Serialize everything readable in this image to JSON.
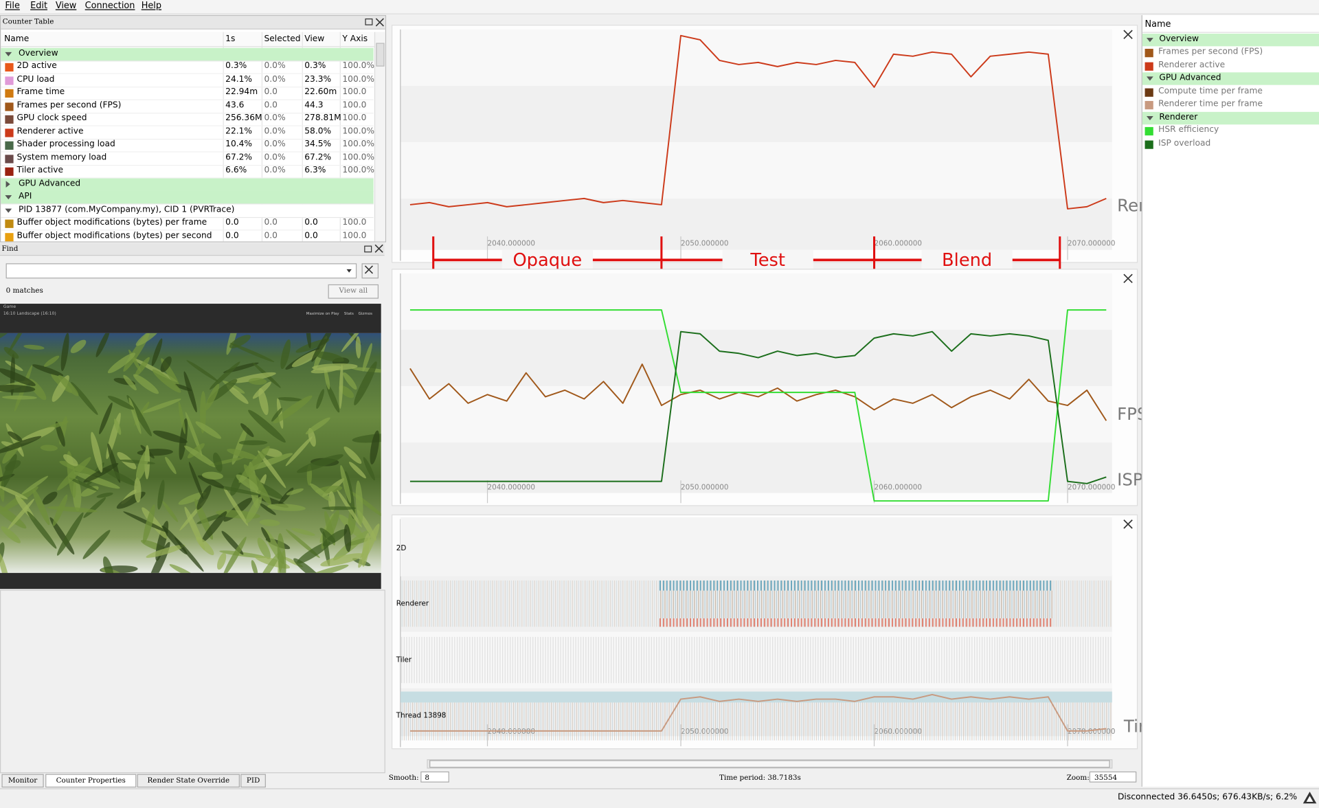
{
  "menu": [
    "File",
    "Edit",
    "View",
    "Connection",
    "Help"
  ],
  "counter_table": {
    "title": "Counter Table",
    "columns": [
      "Name",
      "1s",
      "Selected",
      "View",
      "Y Axis"
    ],
    "rows": [
      {
        "group": "Overview",
        "expanded": true
      },
      {
        "name": "2D active",
        "color": "#e8581a",
        "cells": [
          "0.3%",
          "0.0%",
          "0.3%",
          "100.0%"
        ]
      },
      {
        "name": "CPU load",
        "color": "#e09ad8",
        "cells": [
          "24.1%",
          "0.0%",
          "23.3%",
          "100.0%"
        ]
      },
      {
        "name": "Frame time",
        "color": "#d07a10",
        "cells": [
          "22.94m",
          "0.0",
          "22.60m",
          "100.0"
        ]
      },
      {
        "name": "Frames per second (FPS)",
        "color": "#a0581a",
        "cells": [
          "43.6",
          "0.0",
          "44.3",
          "100.0"
        ]
      },
      {
        "name": "GPU clock speed",
        "color": "#7a4a3a",
        "cells": [
          "256.36M",
          "0.0%",
          "278.81M",
          "100.0"
        ]
      },
      {
        "name": "Renderer active",
        "color": "#cc3a1a",
        "cells": [
          "22.1%",
          "0.0%",
          "58.0%",
          "100.0%"
        ]
      },
      {
        "name": "Shader processing load",
        "color": "#4a6a4a",
        "cells": [
          "10.4%",
          "0.0%",
          "34.5%",
          "100.0%"
        ]
      },
      {
        "name": "System memory load",
        "color": "#6a4a4a",
        "cells": [
          "67.2%",
          "0.0%",
          "67.2%",
          "100.0%"
        ]
      },
      {
        "name": "Tiler active",
        "color": "#9a2010",
        "cells": [
          "6.6%",
          "0.0%",
          "6.3%",
          "100.0%"
        ]
      },
      {
        "group": "GPU Advanced",
        "expanded": false
      },
      {
        "group": "API",
        "expanded": true
      },
      {
        "subgroup": "PID 13877 (com.MyCompany.my), CID 1 (PVRTrace)",
        "expanded": true
      },
      {
        "name": "Buffer object modifications (bytes) per frame",
        "color": "#c08a10",
        "cells": [
          "0.0",
          "0.0",
          "0.0",
          "100.0"
        ]
      },
      {
        "name": "Buffer object modifications (bytes) per second",
        "color": "#e8a010",
        "cells": [
          "0.0",
          "0.0",
          "0.0",
          "100.0"
        ]
      }
    ]
  },
  "find": {
    "title": "Find",
    "matches": "0 matches",
    "button": "View all"
  },
  "game_view": {
    "tab": "Game",
    "aspect": "16:10 Landscape (16:10)",
    "options": [
      "Maximize on Play",
      "Stats",
      "Gizmos"
    ]
  },
  "bottom_tabs": [
    "Monitor",
    "Counter Properties",
    "Render State Override",
    "PID"
  ],
  "chart_data": [
    {
      "type": "line",
      "annotation": "Render Activity",
      "x": [
        2036,
        2037,
        2038,
        2039,
        2040,
        2041,
        2042,
        2043,
        2044,
        2045,
        2046,
        2047,
        2048,
        2049,
        2050,
        2051,
        2052,
        2053,
        2054,
        2055,
        2056,
        2057,
        2058,
        2059,
        2060,
        2061,
        2062,
        2063,
        2064,
        2065,
        2066,
        2067,
        2068,
        2069,
        2070,
        2071,
        2072
      ],
      "xlim": [
        2035.5,
        2072.3
      ],
      "xticks": [
        {
          "value": 2040,
          "label": "2040.000000"
        },
        {
          "value": 2050,
          "label": "2050.000000"
        },
        {
          "value": 2060,
          "label": "2060.000000"
        },
        {
          "value": 2070,
          "label": "2070.000000"
        }
      ],
      "ylim": [
        0,
        100
      ],
      "series": [
        {
          "name": "Renderer active",
          "color": "#cc3a1a",
          "values": [
            15,
            16,
            14,
            15,
            16,
            14,
            15,
            16,
            17,
            18,
            16,
            17,
            16,
            15,
            97,
            95,
            85,
            83,
            84,
            82,
            84,
            83,
            85,
            84,
            72,
            88,
            87,
            89,
            88,
            77,
            87,
            88,
            89,
            88,
            13,
            14,
            18
          ]
        }
      ],
      "phase_labels": [
        "Opaque",
        "Test",
        "Blend"
      ],
      "phase_bounds": [
        2037.2,
        2049.0,
        2060.0,
        2069.6
      ]
    },
    {
      "type": "line",
      "annotation": "FPS",
      "annotation2": "ISP overload",
      "x": [
        2036,
        2037,
        2038,
        2039,
        2040,
        2041,
        2042,
        2043,
        2044,
        2045,
        2046,
        2047,
        2048,
        2049,
        2050,
        2051,
        2052,
        2053,
        2054,
        2055,
        2056,
        2057,
        2058,
        2059,
        2060,
        2061,
        2062,
        2063,
        2064,
        2065,
        2066,
        2067,
        2068,
        2069,
        2070,
        2071,
        2072
      ],
      "xlim": [
        2035.5,
        2072.3
      ],
      "xticks": [
        {
          "value": 2040,
          "label": "2040.000000"
        },
        {
          "value": 2050,
          "label": "2050.000000"
        },
        {
          "value": 2060,
          "label": "2060.000000"
        },
        {
          "value": 2070,
          "label": "2070.000000"
        }
      ],
      "ylim": [
        0,
        100
      ],
      "series": [
        {
          "name": "Frames per second (FPS)",
          "color": "#a0581a",
          "values": [
            62,
            48,
            55,
            46,
            50,
            47,
            60,
            49,
            52,
            48,
            56,
            46,
            64,
            45,
            50,
            52,
            48,
            51,
            49,
            53,
            47,
            50,
            52,
            49,
            43,
            48,
            46,
            50,
            44,
            49,
            52,
            48,
            57,
            47,
            45,
            52,
            38
          ]
        },
        {
          "name": "HSR efficiency",
          "color": "#33dd33",
          "values": [
            89,
            89,
            89,
            89,
            89,
            89,
            89,
            89,
            89,
            89,
            89,
            89,
            89,
            89,
            51,
            51,
            51,
            51,
            51,
            51,
            51,
            51,
            51,
            51,
            1,
            1,
            1,
            1,
            1,
            1,
            1,
            1,
            1,
            1,
            89,
            89,
            89
          ]
        },
        {
          "name": "ISP overload",
          "color": "#1b6e1b",
          "values": [
            10,
            10,
            10,
            10,
            10,
            10,
            10,
            10,
            10,
            10,
            10,
            10,
            10,
            10,
            79,
            78,
            70,
            69,
            67,
            70,
            68,
            69,
            67,
            68,
            76,
            78,
            77,
            79,
            70,
            78,
            77,
            78,
            77,
            75,
            10,
            9,
            12
          ]
        }
      ]
    },
    {
      "type": "line",
      "annotation": "Time Per Frame",
      "tracks": [
        "2D",
        "Renderer",
        "Tiler",
        "Thread 13898"
      ],
      "x": [
        2036,
        2037,
        2038,
        2039,
        2040,
        2041,
        2042,
        2043,
        2044,
        2045,
        2046,
        2047,
        2048,
        2049,
        2050,
        2051,
        2052,
        2053,
        2054,
        2055,
        2056,
        2057,
        2058,
        2059,
        2060,
        2061,
        2062,
        2063,
        2064,
        2065,
        2066,
        2067,
        2068,
        2069,
        2070,
        2071,
        2072
      ],
      "xlim": [
        2035.5,
        2072.3
      ],
      "xticks": [
        {
          "value": 2040,
          "label": "2040.000000"
        },
        {
          "value": 2050,
          "label": "2050.000000"
        },
        {
          "value": 2060,
          "label": "2060.000000"
        },
        {
          "value": 2070,
          "label": "2070.000000"
        }
      ],
      "ylim": [
        0,
        100
      ],
      "series": [
        {
          "name": "Renderer time per frame",
          "color": "#c89a80",
          "values": [
            6,
            6,
            6,
            6,
            6,
            6,
            6,
            6,
            6,
            6,
            6,
            6,
            6,
            6,
            20,
            21,
            19,
            20,
            19,
            20,
            19,
            20,
            20,
            19,
            21,
            21,
            20,
            22,
            20,
            21,
            20,
            21,
            20,
            21,
            6,
            6,
            7
          ]
        }
      ]
    }
  ],
  "timeline": {
    "smooth_label": "Smooth:",
    "smooth": 8,
    "time_period": "Time period: 38.7183s",
    "zoom_label": "Zoom:",
    "zoom": 35554
  },
  "legend_panel": {
    "header": "Name",
    "groups": [
      "Overview",
      "GPU Advanced",
      "Renderer"
    ],
    "extra_item": {
      "name": "Compute time per frame",
      "color": "#6b3a14"
    }
  },
  "status": "Disconnected 36.6450s; 676.43KB/s; 6.2%"
}
